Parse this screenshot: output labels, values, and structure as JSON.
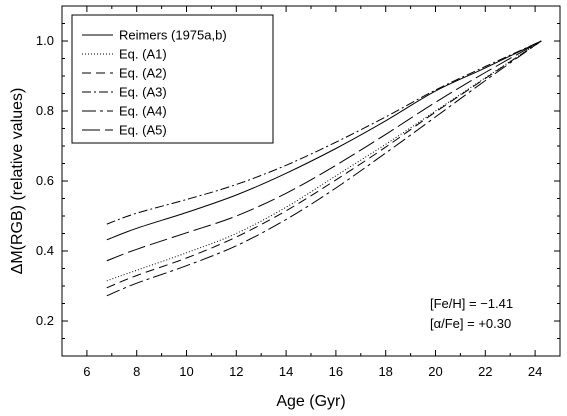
{
  "chart_data": {
    "type": "line",
    "xlabel": "Age (Gyr)",
    "ylabel": "ΔM(RGB) (relative values)",
    "xlim": [
      5,
      25
    ],
    "ylim": [
      0.1,
      1.1
    ],
    "xticks": [
      6,
      8,
      10,
      12,
      14,
      16,
      18,
      20,
      22,
      24
    ],
    "yticks": [
      0.2,
      0.4,
      0.6,
      0.8,
      1.0
    ],
    "xtick_labels": [
      "6",
      "8",
      "10",
      "12",
      "14",
      "16",
      "18",
      "20",
      "22",
      "24"
    ],
    "ytick_labels": [
      "0.2",
      "0.4",
      "0.6",
      "0.8",
      "1.0"
    ],
    "legend_position": "top-left",
    "grid": false,
    "annotations": [
      "[Fe/H] = −1.41",
      "[α/Fe] = +0.30"
    ],
    "series": [
      {
        "name": "Reimers (1975a,b)",
        "dash": "solid",
        "x": [
          6.8,
          8,
          10,
          12,
          14,
          16,
          18,
          20,
          22,
          24.25
        ],
        "y": [
          0.432,
          0.465,
          0.51,
          0.56,
          0.622,
          0.693,
          0.772,
          0.857,
          0.923,
          1.0
        ]
      },
      {
        "name": "Eq. (A1)",
        "dash": "dotted",
        "x": [
          6.8,
          8,
          10,
          12,
          14,
          16,
          18,
          20,
          22,
          24.25
        ],
        "y": [
          0.315,
          0.345,
          0.395,
          0.45,
          0.525,
          0.615,
          0.705,
          0.8,
          0.895,
          1.0
        ]
      },
      {
        "name": "Eq. (A2)",
        "dash": "dashed",
        "x": [
          6.8,
          8,
          10,
          12,
          14,
          16,
          18,
          20,
          22,
          24.25
        ],
        "y": [
          0.295,
          0.33,
          0.38,
          0.44,
          0.515,
          0.603,
          0.697,
          0.797,
          0.893,
          1.0
        ]
      },
      {
        "name": "Eq. (A3)",
        "dash": "dash-dot",
        "x": [
          6.8,
          8,
          10,
          12,
          14,
          16,
          18,
          20,
          22,
          24.25
        ],
        "y": [
          0.477,
          0.508,
          0.547,
          0.59,
          0.645,
          0.711,
          0.783,
          0.86,
          0.927,
          1.0
        ]
      },
      {
        "name": "Eq. (A4)",
        "dash": "long-dash-dot",
        "x": [
          6.8,
          8,
          10,
          12,
          14,
          16,
          18,
          20,
          22,
          24.25
        ],
        "y": [
          0.272,
          0.308,
          0.358,
          0.415,
          0.49,
          0.58,
          0.68,
          0.783,
          0.887,
          1.0
        ]
      },
      {
        "name": "Eq. (A5)",
        "dash": "long-dash",
        "x": [
          6.8,
          8,
          10,
          12,
          14,
          16,
          18,
          20,
          22,
          24.25
        ],
        "y": [
          0.372,
          0.405,
          0.452,
          0.5,
          0.565,
          0.645,
          0.733,
          0.825,
          0.91,
          1.0
        ]
      }
    ]
  }
}
